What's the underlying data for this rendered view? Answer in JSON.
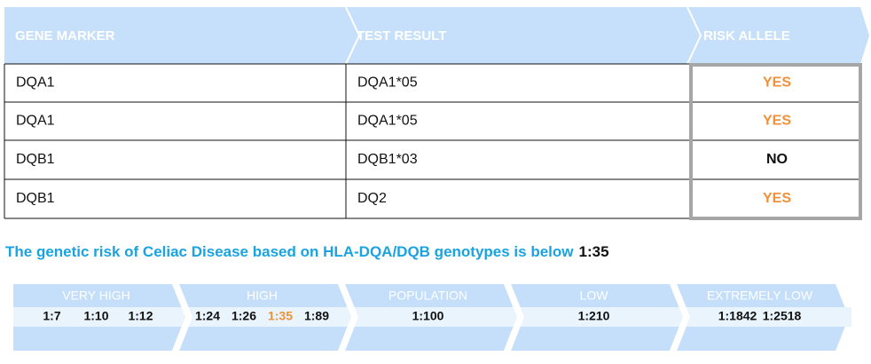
{
  "table": {
    "headers": [
      "GENE MARKER",
      "TEST RESULT",
      "RISK ALLELE"
    ],
    "header_color": "#c6e0fb",
    "rows": [
      {
        "gene": "DQA1",
        "result": "DQA1*05",
        "risk": "YES",
        "risk_color": "#f0913a"
      },
      {
        "gene": "DQA1",
        "result": "DQA1*05",
        "risk": "YES",
        "risk_color": "#f0913a"
      },
      {
        "gene": "DQB1",
        "result": "DQB1*03",
        "risk": "NO",
        "risk_color": "#111111"
      },
      {
        "gene": "DQB1",
        "result": "DQ2",
        "risk": "YES",
        "risk_color": "#f0913a"
      }
    ]
  },
  "summary": {
    "text": "The genetic risk of Celiac Disease based on HLA-DQA/DQB genotypes is below",
    "value": "1:35",
    "color": "#1aa3e0"
  },
  "scale": {
    "highlight_color": "#f0913a",
    "segments": [
      {
        "label": "VERY HIGH",
        "ratios": [
          "1:7",
          "1:10",
          "1:12"
        ]
      },
      {
        "label": "HIGH",
        "ratios": [
          "1:24",
          "1:26",
          "1:35",
          "1:89"
        ]
      },
      {
        "label": "POPULATION",
        "ratios": [
          "1:100"
        ]
      },
      {
        "label": "LOW",
        "ratios": [
          "1:210"
        ]
      },
      {
        "label": "EXTREMELY LOW",
        "ratios": [
          "1:1842",
          "1:2518"
        ]
      }
    ]
  }
}
